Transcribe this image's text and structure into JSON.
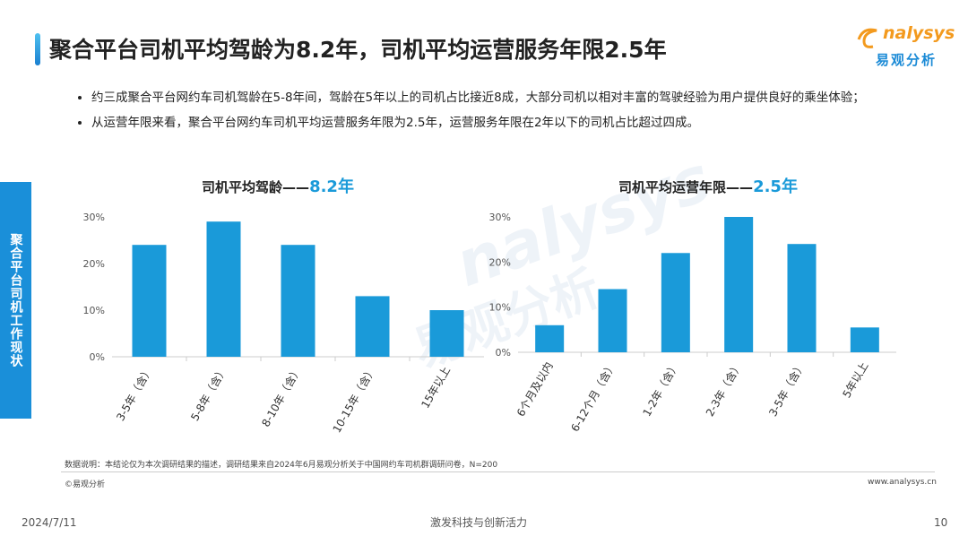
{
  "header": {
    "title": "聚合平台司机平均驾龄为8.2年，司机平均运营服务年限2.5年"
  },
  "logo": {
    "name": "nalysys",
    "cn": "易观分析"
  },
  "sidebar": "聚合平台司机工作现状",
  "bullets": [
    "约三成聚合平台网约车司机驾龄在5-8年间，驾龄在5年以上的司机占比接近8成，大部分司机以相对丰富的驾驶经验为用户提供良好的乘坐体验；",
    "从运营年限来看，聚合平台网约车司机平均运营服务年限为2.5年，运营服务年限在2年以下的司机占比超过四成。"
  ],
  "watermark": {
    "name": "nalysys",
    "cn": "易观分析"
  },
  "chart_data": [
    {
      "type": "bar",
      "title": "司机平均驾龄——",
      "title_highlight": "8.2年",
      "color": "#1a9ad9",
      "categories": [
        "3-5年（含）",
        "5-8年（含）",
        "8-10年（含）",
        "10-15年（含）",
        "15年以上"
      ],
      "values": [
        24,
        29,
        24,
        13,
        10
      ],
      "ylim": [
        0,
        30
      ],
      "yticks": [
        {
          "value": 0,
          "label": "0%"
        },
        {
          "value": 10,
          "label": "10%"
        },
        {
          "value": 20,
          "label": "20%"
        },
        {
          "value": 30,
          "label": "30%"
        }
      ],
      "grid": false
    },
    {
      "type": "bar",
      "title": "司机平均运营年限——",
      "title_highlight": "2.5年",
      "color": "#1a9ad9",
      "categories": [
        "6个月及以内",
        "6-12个月（含）",
        "1-2年（含）",
        "2-3年（含）",
        "3-5年（含）",
        "5年以上"
      ],
      "values": [
        6,
        14,
        22,
        30,
        24,
        5.5
      ],
      "ylim": [
        0,
        30
      ],
      "yticks": [
        {
          "value": 0,
          "label": "0%"
        },
        {
          "value": 10,
          "label": "10%"
        },
        {
          "value": 20,
          "label": "20%"
        },
        {
          "value": 30,
          "label": "30%"
        }
      ],
      "grid": false
    }
  ],
  "footer": {
    "note": "数据说明：本结论仅为本次调研结果的描述，调研结果来自2024年6月易观分析关于中国网约车司机群调研问卷，N=200",
    "copyright": "©易观分析",
    "url": "www.analysys.cn",
    "date": "2024/7/11",
    "slogan": "激发科技与创新活力",
    "page": "10"
  }
}
